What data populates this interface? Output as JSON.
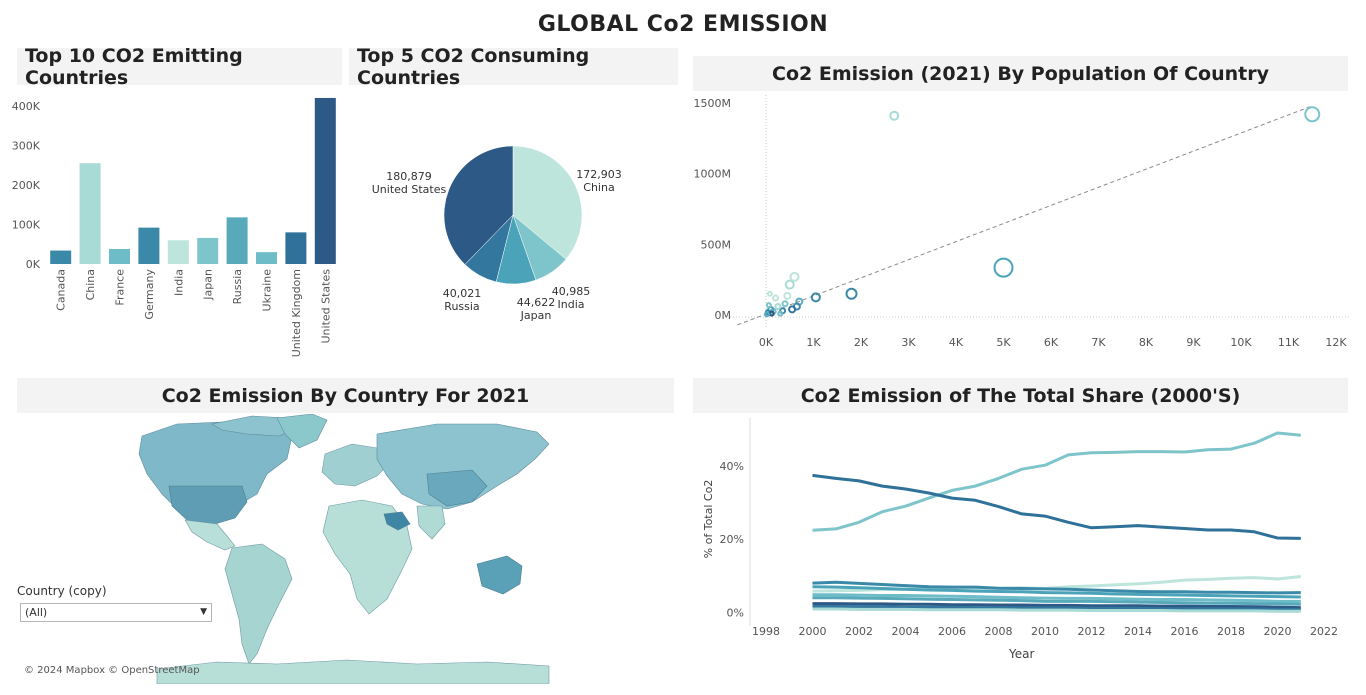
{
  "dashboard": {
    "title": "GLOBAL Co2 EMISSION"
  },
  "panels": {
    "bar_title": "Top 10 CO2 Emitting Countries",
    "pie_title": "Top 5 CO2 Consuming Countries",
    "scatter_title": "Co2 Emission (2021) By Population Of Country",
    "map_title": "Co2 Emission By Country For 2021",
    "line_title": "Co2 Emission of The Total Share (2000'S)"
  },
  "filter": {
    "label": "Country (copy)",
    "value": "(All)"
  },
  "map": {
    "attribution": "© 2024 Mapbox © OpenStreetMap"
  },
  "colors": {
    "dark": "#2c5985",
    "mid": "#3b89a9",
    "light": "#a8dad6",
    "teal": "#6fbcc9",
    "pale": "#bde5dc"
  },
  "chart_data": [
    {
      "type": "bar",
      "title": "Top 10 CO2 Emitting Countries",
      "categories": [
        "Canada",
        "China",
        "France",
        "Germany",
        "India",
        "Japan",
        "Russia",
        "Ukraine",
        "United Kingdom",
        "United States"
      ],
      "values": [
        34000,
        255000,
        38000,
        92000,
        60000,
        66000,
        118000,
        30000,
        80000,
        420000
      ],
      "yticks": [
        "0K",
        "100K",
        "200K",
        "300K",
        "400K"
      ],
      "ytick_values": [
        0,
        100000,
        200000,
        300000,
        400000
      ],
      "ylim": [
        0,
        430000
      ],
      "bar_colors": [
        "#3b89a9",
        "#a8dad6",
        "#6fbcc9",
        "#3b89a9",
        "#bde5dc",
        "#7ec4cb",
        "#58aabb",
        "#6fbcc9",
        "#2f7199",
        "#2c5985"
      ]
    },
    {
      "type": "pie",
      "title": "Top 5 CO2 Consuming Countries",
      "slices": [
        {
          "label": "China",
          "value": 172903,
          "display": "172,903",
          "color": "#bde5dc"
        },
        {
          "label": "India",
          "value": 40985,
          "display": "40,985",
          "color": "#7ec4cb"
        },
        {
          "label": "Japan",
          "value": 44622,
          "display": "44,622",
          "color": "#4aa3b8"
        },
        {
          "label": "Russia",
          "value": 40021,
          "display": "40,021",
          "color": "#33769e"
        },
        {
          "label": "United States",
          "value": 180879,
          "display": "180,879",
          "color": "#2c5985"
        }
      ]
    },
    {
      "type": "scatter",
      "title": "Co2 Emission (2021) By Population Of Country",
      "xticks": [
        "0K",
        "1K",
        "2K",
        "3K",
        "4K",
        "5K",
        "6K",
        "7K",
        "8K",
        "9K",
        "10K",
        "11K",
        "12K"
      ],
      "xtick_values": [
        0,
        1000,
        2000,
        3000,
        4000,
        5000,
        6000,
        7000,
        8000,
        9000,
        10000,
        11000,
        12000
      ],
      "yticks": [
        "0M",
        "500M",
        "1000M",
        "1500M"
      ],
      "ytick_values": [
        0,
        500,
        1000,
        1500
      ],
      "xlim": [
        0,
        12000
      ],
      "ylim": [
        0,
        1500
      ],
      "trend": {
        "x0": -600,
        "y0": -70,
        "x1": 11500,
        "y1": 1480
      },
      "points": [
        {
          "x": 11500,
          "y": 1420,
          "size": 7,
          "color": "#7ec4cb"
        },
        {
          "x": 2700,
          "y": 1410,
          "size": 4,
          "color": "#a8dad6"
        },
        {
          "x": 5000,
          "y": 335,
          "size": 9,
          "color": "#4aa3b8"
        },
        {
          "x": 1800,
          "y": 150,
          "size": 5,
          "color": "#3b89a9"
        },
        {
          "x": 1050,
          "y": 125,
          "size": 4,
          "color": "#3b89a9"
        },
        {
          "x": 600,
          "y": 270,
          "size": 4,
          "color": "#bde5dc"
        },
        {
          "x": 500,
          "y": 215,
          "size": 4,
          "color": "#a8dad6"
        },
        {
          "x": 450,
          "y": 135,
          "size": 3,
          "color": "#bde5dc"
        },
        {
          "x": 700,
          "y": 95,
          "size": 3,
          "color": "#58aabb"
        },
        {
          "x": 650,
          "y": 60,
          "size": 3,
          "color": "#3b89a9"
        },
        {
          "x": 550,
          "y": 40,
          "size": 3,
          "color": "#2f7199"
        },
        {
          "x": 400,
          "y": 80,
          "size": 2.5,
          "color": "#7ec4cb"
        },
        {
          "x": 350,
          "y": 30,
          "size": 2.5,
          "color": "#3b89a9"
        },
        {
          "x": 250,
          "y": 60,
          "size": 2.5,
          "color": "#a8dad6"
        },
        {
          "x": 200,
          "y": 120,
          "size": 2.5,
          "color": "#bde5dc"
        },
        {
          "x": 150,
          "y": 25,
          "size": 2.5,
          "color": "#6fbcc9"
        },
        {
          "x": 100,
          "y": 40,
          "size": 2.5,
          "color": "#4aa3b8"
        },
        {
          "x": 80,
          "y": 150,
          "size": 2,
          "color": "#bde5dc"
        },
        {
          "x": 60,
          "y": 70,
          "size": 2,
          "color": "#7ec4cb"
        },
        {
          "x": 40,
          "y": 20,
          "size": 2,
          "color": "#3b89a9"
        },
        {
          "x": 120,
          "y": 10,
          "size": 2,
          "color": "#2c5985"
        },
        {
          "x": 300,
          "y": 10,
          "size": 2,
          "color": "#6fbcc9"
        },
        {
          "x": 20,
          "y": 5,
          "size": 2,
          "color": "#58aabb"
        }
      ]
    },
    {
      "type": "line",
      "title": "Co2 Emission of The Total Share (2000'S)",
      "xlabel": "Year",
      "ylabel": "% of Total Co2",
      "xticks": [
        "1998",
        "2000",
        "2002",
        "2004",
        "2006",
        "2008",
        "2010",
        "2012",
        "2014",
        "2016",
        "2018",
        "2020",
        "2022"
      ],
      "xtick_values": [
        1998,
        2000,
        2002,
        2004,
        2006,
        2008,
        2010,
        2012,
        2014,
        2016,
        2018,
        2020,
        2022
      ],
      "yticks": [
        "0%",
        "20%",
        "40%"
      ],
      "ytick_values": [
        0,
        20,
        40
      ],
      "xlim": [
        1998,
        2022
      ],
      "ylim": [
        -1,
        52
      ],
      "x": [
        2000,
        2001,
        2002,
        2003,
        2004,
        2005,
        2006,
        2007,
        2008,
        2009,
        2010,
        2011,
        2012,
        2013,
        2014,
        2015,
        2016,
        2017,
        2018,
        2019,
        2020,
        2021
      ],
      "series": [
        {
          "values": [
            22.4,
            22.8,
            24.6,
            27.5,
            29.0,
            31.2,
            33.3,
            34.5,
            36.6,
            39.1,
            40.2,
            43.0,
            43.6,
            43.7,
            43.9,
            43.9,
            43.8,
            44.4,
            44.6,
            46.2,
            49.0,
            48.4
          ],
          "color": "#7ec4cb"
        },
        {
          "values": [
            37.4,
            36.6,
            35.9,
            34.5,
            33.7,
            32.6,
            31.2,
            30.6,
            28.9,
            26.9,
            26.3,
            24.6,
            23.1,
            23.4,
            23.7,
            23.3,
            22.9,
            22.5,
            22.5,
            22.0,
            20.3,
            20.2
          ],
          "color": "#2f7199"
        },
        {
          "values": [
            5.8,
            5.9,
            6.0,
            6.2,
            6.3,
            6.4,
            6.4,
            6.5,
            6.6,
            6.7,
            6.5,
            7.0,
            7.2,
            7.5,
            7.8,
            8.2,
            8.8,
            9.0,
            9.3,
            9.5,
            9.1,
            9.8
          ],
          "color": "#bde5dc"
        },
        {
          "values": [
            8.0,
            8.2,
            7.9,
            7.6,
            7.3,
            7.0,
            6.9,
            6.9,
            6.6,
            6.5,
            6.4,
            6.3,
            6.1,
            5.9,
            5.7,
            5.6,
            5.6,
            5.5,
            5.5,
            5.4,
            5.3,
            5.4
          ],
          "color": "#3b89a9"
        },
        {
          "values": [
            7.0,
            6.9,
            6.7,
            6.5,
            6.3,
            6.1,
            6.0,
            5.8,
            5.7,
            5.6,
            5.4,
            5.3,
            5.2,
            5.0,
            4.9,
            4.8,
            4.7,
            4.6,
            4.5,
            4.4,
            4.3,
            4.2
          ],
          "color": "#4aa3b8"
        },
        {
          "values": [
            4.8,
            4.8,
            4.7,
            4.6,
            4.6,
            4.5,
            4.4,
            4.3,
            4.1,
            4.0,
            3.9,
            3.8,
            3.8,
            3.7,
            3.6,
            3.5,
            3.5,
            3.4,
            3.3,
            3.2,
            3.0,
            3.0
          ],
          "color": "#6fbcc9"
        },
        {
          "values": [
            4.0,
            4.0,
            3.9,
            3.8,
            3.7,
            3.6,
            3.5,
            3.4,
            3.3,
            3.2,
            3.0,
            3.0,
            3.0,
            2.9,
            2.8,
            2.7,
            2.6,
            2.5,
            2.5,
            2.4,
            2.3,
            2.2
          ],
          "color": "#58aabb"
        },
        {
          "values": [
            2.4,
            2.4,
            2.3,
            2.3,
            2.2,
            2.2,
            2.1,
            2.1,
            2.0,
            2.0,
            1.9,
            1.9,
            1.8,
            1.8,
            1.8,
            1.7,
            1.7,
            1.6,
            1.6,
            1.5,
            1.4,
            1.3
          ],
          "color": "#2c5985"
        },
        {
          "values": [
            1.6,
            1.6,
            1.5,
            1.5,
            1.4,
            1.4,
            1.4,
            1.3,
            1.3,
            1.2,
            1.2,
            1.2,
            1.1,
            1.1,
            1.1,
            1.0,
            1.0,
            1.0,
            0.9,
            0.9,
            0.8,
            0.8
          ],
          "color": "#33769e"
        },
        {
          "values": [
            0.9,
            0.9,
            0.8,
            0.8,
            0.8,
            0.7,
            0.7,
            0.7,
            0.7,
            0.6,
            0.6,
            0.6,
            0.5,
            0.5,
            0.5,
            0.5,
            0.4,
            0.4,
            0.4,
            0.4,
            0.3,
            0.3
          ],
          "color": "#a8dad6"
        }
      ]
    }
  ]
}
